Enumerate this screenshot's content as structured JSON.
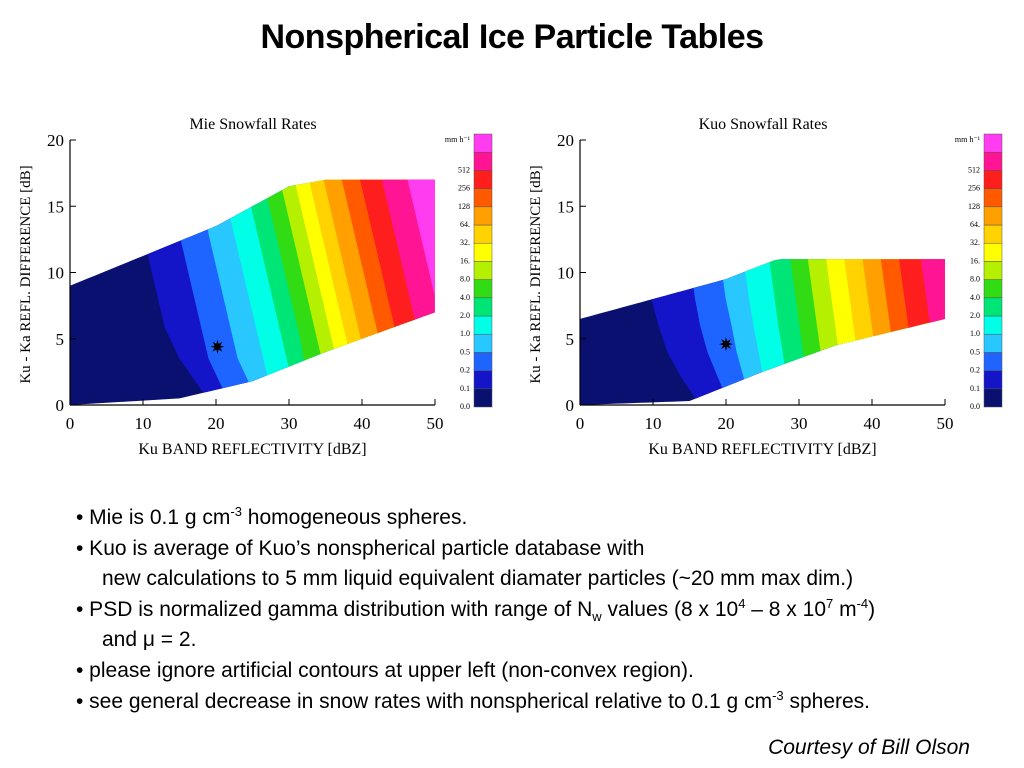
{
  "slide": {
    "title": "Nonspherical Ice Particle Tables",
    "courtesy": "Courtesy of Bill Olson"
  },
  "bullets": [
    {
      "parts": [
        {
          "t": "• Mie is 0.1 g cm"
        },
        {
          "t": "-3",
          "sup": true
        },
        {
          "t": " homogeneous spheres."
        }
      ]
    },
    {
      "parts": [
        {
          "t": "• Kuo is average of Kuo’s nonspherical particle database with"
        }
      ]
    },
    {
      "indent": true,
      "parts": [
        {
          "t": "new calculations to 5 mm liquid equivalent diamater particles (~20 mm max dim.)"
        }
      ]
    },
    {
      "parts": [
        {
          "t": "• PSD is normalized gamma distribution with range of N"
        },
        {
          "t": "w",
          "sub": true
        },
        {
          "t": " values (8 x 10"
        },
        {
          "t": "4",
          "sup": true
        },
        {
          "t": " – 8 x 10"
        },
        {
          "t": "7",
          "sup": true
        },
        {
          "t": " m"
        },
        {
          "t": "-4",
          "sup": true
        },
        {
          "t": ")"
        }
      ]
    },
    {
      "indent": true,
      "parts": [
        {
          "t": "and μ = 2."
        }
      ]
    },
    {
      "parts": [
        {
          "t": "• please ignore artificial contours at upper left (non-convex region)."
        }
      ]
    },
    {
      "parts": [
        {
          "t": "• see general decrease in snow rates with nonspherical relative to 0.1 g cm"
        },
        {
          "t": "-3",
          "sup": true
        },
        {
          "t": " spheres."
        }
      ]
    }
  ],
  "colorbar": {
    "unit": "mm h⁻¹",
    "levels": [
      "0.0",
      "0.1",
      "0.2",
      "0.5",
      "1.0",
      "2.0",
      "4.0",
      "8.0",
      "16.",
      "32.",
      "64.",
      "128",
      "256",
      "512"
    ],
    "colors": [
      "#0a1070",
      "#1414c8",
      "#1e64ff",
      "#28c8ff",
      "#00ffe6",
      "#00e676",
      "#32dc14",
      "#b4f000",
      "#ffff00",
      "#ffd200",
      "#ffa000",
      "#ff5a00",
      "#ff1e1e",
      "#ff1493",
      "#ff3cf0"
    ]
  },
  "chart_data": [
    {
      "type": "heatmap",
      "title": "Mie Snowfall Rates",
      "xlabel": "Ku BAND REFLECTIVITY [dBZ]",
      "ylabel": "Ku - Ka REFL. DIFFERENCE [dB]",
      "xlim": [
        0,
        50
      ],
      "ylim": [
        0,
        20
      ],
      "xticks": [
        "0",
        "10",
        "20",
        "30",
        "40",
        "50"
      ],
      "yticks": [
        "0",
        "5",
        "10",
        "15",
        "20"
      ],
      "region": {
        "upper": [
          [
            0,
            9
          ],
          [
            20,
            13.5
          ],
          [
            30,
            16.5
          ],
          [
            35,
            17
          ],
          [
            50,
            17
          ]
        ],
        "lower": [
          [
            0,
            0
          ],
          [
            15,
            0.5
          ],
          [
            25,
            1.8
          ],
          [
            35,
            4
          ],
          [
            50,
            7
          ]
        ]
      },
      "contours_band_start_x": [
        [
          0,
          0,
          0,
          0,
          0,
          0,
          0,
          0,
          0,
          0,
          0,
          0,
          0,
          0,
          0,
          0,
          0,
          0
        ],
        [
          16,
          13,
          11.5,
          10.5,
          10,
          10,
          10,
          10.5,
          11,
          11.5,
          12,
          12.5,
          13,
          14,
          15,
          16.5,
          18,
          20
        ],
        [
          19,
          16.8,
          15.5,
          15,
          14.8,
          14.8,
          15,
          15.5,
          16,
          16.5,
          17,
          17.5,
          18,
          18.5,
          19,
          20,
          21,
          22
        ],
        [
          20,
          19,
          18.5,
          18.5,
          18.5,
          18.8,
          19,
          19.5,
          20,
          20.5,
          21,
          21.5,
          22,
          22.5,
          23,
          24,
          25,
          26
        ],
        [
          21.5,
          21,
          21,
          21.2,
          21.5,
          22,
          22.5,
          23,
          23.5,
          24,
          24.5,
          25,
          25.5,
          26,
          26.5,
          27,
          27.5,
          28
        ],
        [
          23.5,
          23.5,
          23.8,
          24.2,
          24.7,
          25.2,
          25.7,
          26.2,
          26.7,
          27.2,
          27.7,
          28.2,
          28.7,
          29.2,
          29.7,
          30.2,
          30.7,
          31
        ],
        [
          25.5,
          25.8,
          26.2,
          26.7,
          27.2,
          27.7,
          28.2,
          28.7,
          29.2,
          29.7,
          30.2,
          30.7,
          31.2,
          31.7,
          32,
          32.5,
          33,
          33.5
        ],
        [
          27.5,
          28,
          28.5,
          29,
          29.5,
          30,
          30.5,
          31,
          31.5,
          32,
          32.5,
          33,
          33.5,
          34,
          34.5,
          35,
          35.5,
          36
        ],
        [
          29.5,
          30,
          30.5,
          31,
          31.5,
          32,
          32.5,
          33,
          33.5,
          34,
          34.5,
          35,
          35.5,
          36,
          36.5,
          37,
          37.5,
          38
        ],
        [
          31.5,
          32,
          32.5,
          33,
          33.5,
          34,
          34.5,
          35,
          35.5,
          36,
          36.5,
          37,
          37.5,
          38,
          38.5,
          39,
          39.5,
          40
        ],
        [
          33.5,
          34,
          34.5,
          35,
          35.5,
          36,
          36.5,
          37,
          37.5,
          38,
          38.5,
          39,
          39.5,
          40,
          40.5,
          41,
          41.5,
          42
        ],
        [
          36,
          36.5,
          37,
          37.5,
          38,
          38.5,
          39,
          39.5,
          40,
          40.5,
          41,
          41.5,
          42,
          42.5,
          43,
          43.5,
          44,
          44.5
        ],
        [
          38.5,
          39,
          39.5,
          40,
          40.5,
          41,
          41.5,
          42,
          42.5,
          43,
          43.5,
          44,
          44.5,
          45,
          45.5,
          46,
          46.5,
          47
        ],
        [
          41.5,
          42,
          42.5,
          43,
          43.5,
          44,
          44.5,
          45,
          45.5,
          46,
          46.5,
          47,
          47.5,
          48,
          48.5,
          49,
          49.5,
          50
        ],
        [
          45,
          45.5,
          46,
          46.5,
          47,
          47.5,
          48,
          48.5,
          49,
          49.5,
          50,
          50,
          50,
          50,
          50,
          50,
          50,
          50
        ]
      ],
      "marker": {
        "x": 20.2,
        "y": 4.4
      }
    },
    {
      "type": "heatmap",
      "title": "Kuo Snowfall Rates",
      "xlabel": "Ku BAND REFLECTIVITY [dBZ]",
      "ylabel": "Ku - Ka REFL. DIFFERENCE [dB]",
      "xlim": [
        0,
        50
      ],
      "ylim": [
        0,
        20
      ],
      "xticks": [
        "0",
        "10",
        "20",
        "30",
        "40",
        "50"
      ],
      "yticks": [
        "0",
        "5",
        "10",
        "15",
        "20"
      ],
      "region": {
        "upper": [
          [
            0,
            6.5
          ],
          [
            20,
            9.5
          ],
          [
            27,
            11
          ],
          [
            50,
            11
          ]
        ],
        "lower": [
          [
            0,
            0
          ],
          [
            15,
            0.3
          ],
          [
            25,
            2.5
          ],
          [
            35,
            4.5
          ],
          [
            50,
            6.5
          ]
        ]
      },
      "contours_band_start_x": [
        [
          0,
          0,
          0,
          0,
          0,
          0,
          0,
          0,
          0,
          0,
          0
        ],
        [
          14,
          11.5,
          10,
          9.2,
          9,
          9.2,
          9.8,
          10.8,
          12,
          14,
          16.5
        ],
        [
          17.5,
          16,
          15.2,
          15,
          15,
          15.3,
          15.8,
          16.5,
          17.5,
          19,
          20.5
        ],
        [
          20,
          19,
          18.8,
          18.8,
          19,
          19.5,
          20,
          20.8,
          21.5,
          22.5,
          23.5
        ],
        [
          22,
          21.5,
          21.5,
          21.8,
          22.2,
          22.7,
          23.2,
          23.8,
          24.5,
          25.2,
          26
        ],
        [
          24.5,
          24.5,
          24.8,
          25.2,
          25.7,
          26.2,
          26.7,
          27.2,
          27.8,
          28.3,
          29
        ],
        [
          27,
          27.3,
          27.7,
          28.1,
          28.6,
          29.1,
          29.6,
          30.1,
          30.6,
          31.1,
          31.6
        ],
        [
          29.5,
          29.8,
          30.2,
          30.6,
          31,
          31.5,
          32,
          32.5,
          33,
          33.5,
          34
        ],
        [
          32,
          32.3,
          32.7,
          33.1,
          33.5,
          34,
          34.5,
          35,
          35.5,
          36,
          36.5
        ],
        [
          34.5,
          34.8,
          35.2,
          35.6,
          36,
          36.5,
          37,
          37.5,
          38,
          38.5,
          39
        ],
        [
          37,
          37.3,
          37.7,
          38.1,
          38.5,
          39,
          39.5,
          40,
          40.5,
          41,
          41.5
        ],
        [
          39.5,
          39.8,
          40.2,
          40.6,
          41,
          41.5,
          42,
          42.5,
          43,
          43.5,
          44
        ],
        [
          42,
          42.3,
          42.7,
          43.1,
          43.5,
          44,
          44.5,
          45,
          45.5,
          46,
          46.5
        ],
        [
          45,
          45.3,
          45.7,
          46.1,
          46.5,
          47,
          47.5,
          48,
          48.5,
          49,
          49.5
        ]
      ],
      "marker": {
        "x": 20,
        "y": 4.6
      }
    }
  ]
}
